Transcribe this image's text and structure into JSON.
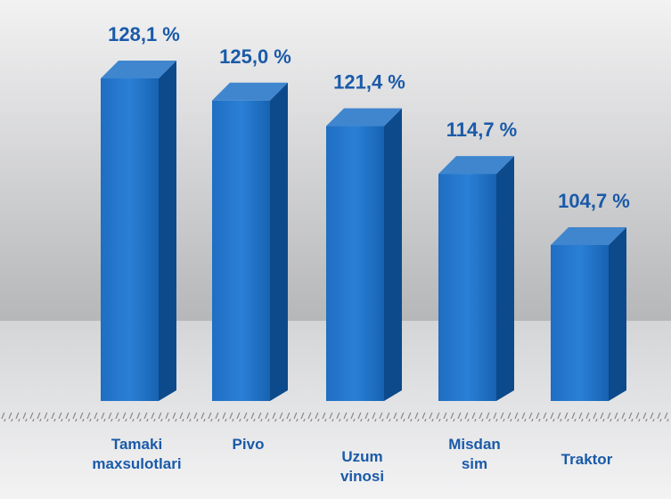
{
  "chart_data": {
    "type": "bar3d",
    "categories": [
      "Tamaki maxsulotlari",
      "Pivo",
      "Uzum vinosi",
      "Misdan sim",
      "Traktor"
    ],
    "values": [
      128.1,
      125.0,
      121.4,
      114.7,
      104.7
    ],
    "value_labels": [
      "128,1 %",
      "125,0 %",
      "121,4 %",
      "114,7 %",
      "104,7  %"
    ],
    "color": "#1a64b4"
  }
}
